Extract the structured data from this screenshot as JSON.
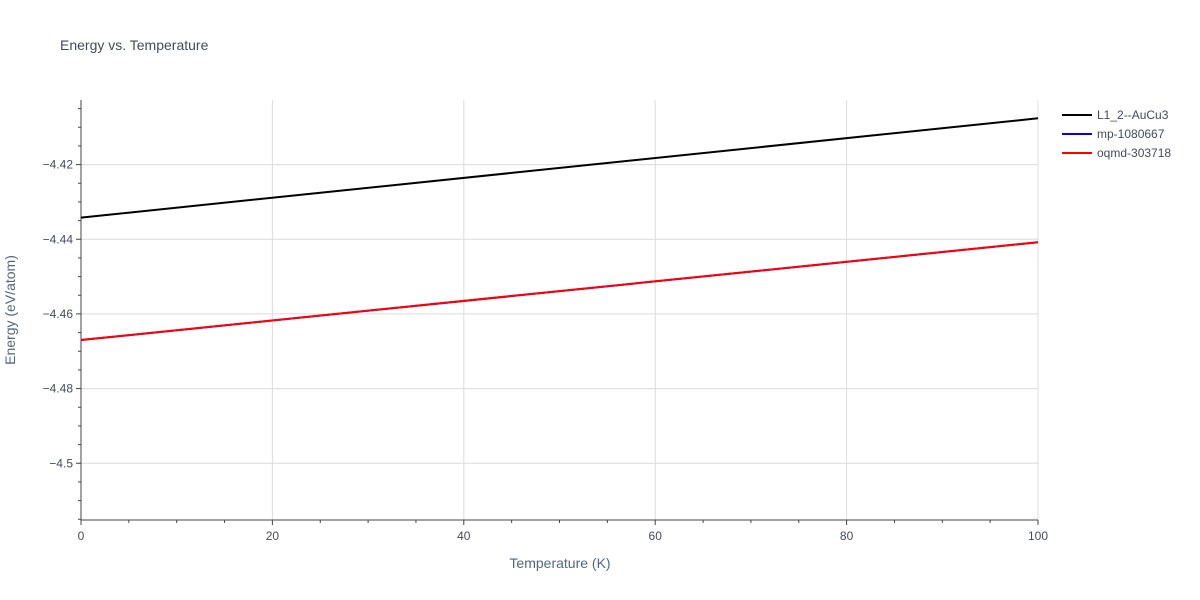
{
  "chart_data": {
    "type": "line",
    "title": "Energy vs. Temperature",
    "xlabel": "Temperature (K)",
    "ylabel": "Energy (eV/atom)",
    "xlim": [
      0,
      100
    ],
    "ylim": [
      -4.5152,
      -4.4027
    ],
    "x_ticks": [
      0,
      20,
      40,
      60,
      80,
      100
    ],
    "y_ticks": [
      -4.5,
      -4.48,
      -4.46,
      -4.44,
      -4.42
    ],
    "y_tick_labels": [
      "−4.5",
      "−4.48",
      "−4.46",
      "−4.44",
      "−4.42"
    ],
    "grid": true,
    "legend_position": "top-right",
    "series": [
      {
        "name": "L1_2--AuCu3",
        "color": "#000000",
        "x": [
          0,
          100
        ],
        "y": [
          -4.4342,
          -4.4076
        ]
      },
      {
        "name": "mp-1080667",
        "color": "#0000ff",
        "x": [
          0,
          100
        ],
        "y": [
          -4.467,
          -4.4408
        ]
      },
      {
        "name": "oqmd-303718",
        "color": "#ff0000",
        "x": [
          0,
          100
        ],
        "y": [
          -4.467,
          -4.4408
        ]
      }
    ]
  }
}
